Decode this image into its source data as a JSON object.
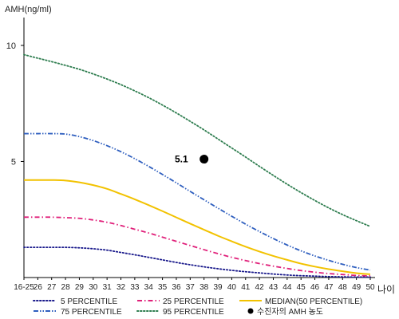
{
  "chart_data": {
    "type": "line",
    "ylabel": "AMH(ng/ml)",
    "xlabel": "나이",
    "x_ticks": [
      "16-25",
      "26",
      "27",
      "28",
      "29",
      "30",
      "31",
      "32",
      "33",
      "34",
      "35",
      "36",
      "37",
      "38",
      "39",
      "40",
      "41",
      "42",
      "43",
      "44",
      "45",
      "46",
      "47",
      "48",
      "49",
      "50"
    ],
    "y_ticks": [
      5,
      10
    ],
    "ylim": [
      0,
      11.2
    ],
    "series": [
      {
        "name": "5 PERCENTILE",
        "color": "#1a1a8c",
        "dash": "dotted",
        "values": [
          1.3,
          1.3,
          1.3,
          1.3,
          1.28,
          1.24,
          1.18,
          1.08,
          0.98,
          0.87,
          0.76,
          0.65,
          0.55,
          0.46,
          0.38,
          0.31,
          0.25,
          0.2,
          0.15,
          0.11,
          0.08,
          0.06,
          0.04,
          0.03,
          0.02,
          0.02
        ]
      },
      {
        "name": "25 PERCENTILE",
        "color": "#e0207a",
        "dash": "dashdot",
        "values": [
          2.6,
          2.6,
          2.6,
          2.58,
          2.55,
          2.48,
          2.38,
          2.24,
          2.08,
          1.92,
          1.74,
          1.56,
          1.38,
          1.2,
          1.03,
          0.87,
          0.73,
          0.6,
          0.49,
          0.39,
          0.3,
          0.23,
          0.17,
          0.13,
          0.09,
          0.07
        ]
      },
      {
        "name": "MEDIAN(50 PERCENTILE)",
        "color": "#f2c200",
        "dash": "solid",
        "values": [
          4.2,
          4.2,
          4.2,
          4.18,
          4.1,
          3.98,
          3.82,
          3.6,
          3.37,
          3.12,
          2.86,
          2.59,
          2.32,
          2.06,
          1.8,
          1.56,
          1.33,
          1.12,
          0.93,
          0.76,
          0.6,
          0.47,
          0.36,
          0.27,
          0.19,
          0.14
        ]
      },
      {
        "name": "75 PERCENTILE",
        "color": "#2f5fbf",
        "dash": "dashdotdot",
        "values": [
          6.2,
          6.2,
          6.2,
          6.18,
          6.07,
          5.9,
          5.68,
          5.42,
          5.12,
          4.79,
          4.44,
          4.08,
          3.71,
          3.35,
          2.99,
          2.64,
          2.3,
          1.98,
          1.68,
          1.4,
          1.15,
          0.93,
          0.74,
          0.57,
          0.43,
          0.32
        ]
      },
      {
        "name": "95 PERCENTILE",
        "color": "#2e7d4f",
        "dash": "dotted",
        "values": [
          9.6,
          9.45,
          9.3,
          9.14,
          8.97,
          8.77,
          8.55,
          8.31,
          8.04,
          7.75,
          7.43,
          7.09,
          6.73,
          6.36,
          5.97,
          5.58,
          5.19,
          4.79,
          4.4,
          4.02,
          3.66,
          3.32,
          3.0,
          2.71,
          2.45,
          2.2
        ]
      }
    ],
    "annotation": {
      "label": "5.1",
      "x": "38",
      "y": 5.1,
      "legend": "수진자의 AMH 농도"
    }
  }
}
